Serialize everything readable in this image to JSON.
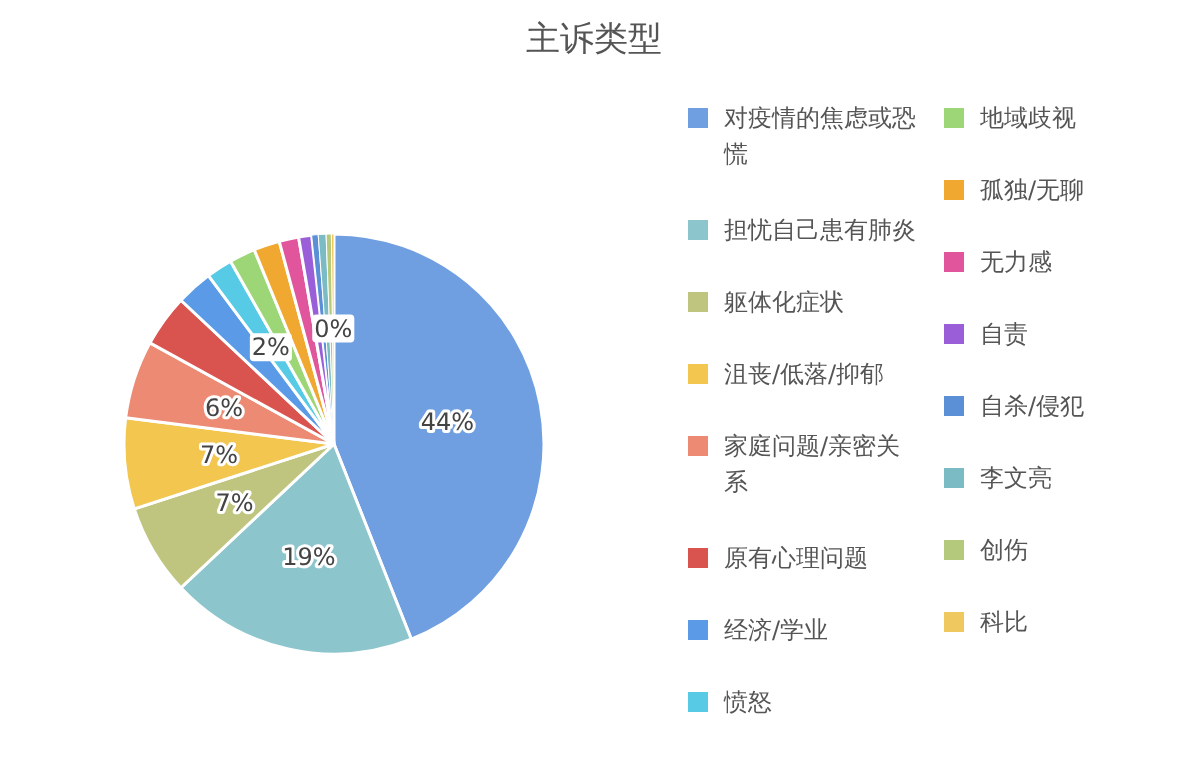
{
  "chart_data": {
    "type": "pie",
    "title": "主诉类型",
    "categories": [
      "对疫情的焦虑或恐慌",
      "担忧自己患有肺炎",
      "躯体化症状",
      "沮丧/低落/抑郁",
      "家庭问题/亲密关系",
      "原有心理问题",
      "经济/学业",
      "愤怒",
      "地域歧视",
      "孤独/无聊",
      "无力感",
      "自责",
      "自杀/侵犯",
      "李文亮",
      "创伤",
      "科比"
    ],
    "values": [
      44,
      19,
      7,
      7,
      6,
      4,
      2.8,
      2,
      2,
      2,
      1.5,
      1,
      0.5,
      0.6,
      0.4,
      0.2
    ],
    "colors": [
      "#6f9fe0",
      "#8cc5cc",
      "#bfc57f",
      "#f2c64f",
      "#ec8a74",
      "#d9534f",
      "#5a9ae6",
      "#57cbe6",
      "#9dd676",
      "#f0a830",
      "#e0559c",
      "#9a5ed8",
      "#5b8fd6",
      "#7bbcc4",
      "#b4c97c",
      "#f0c860"
    ],
    "value_labels": [
      "44%",
      "19%",
      "7%",
      "7%",
      "6%",
      null,
      null,
      "2%",
      null,
      null,
      null,
      null,
      null,
      null,
      null,
      "0%"
    ],
    "legend": "right"
  }
}
